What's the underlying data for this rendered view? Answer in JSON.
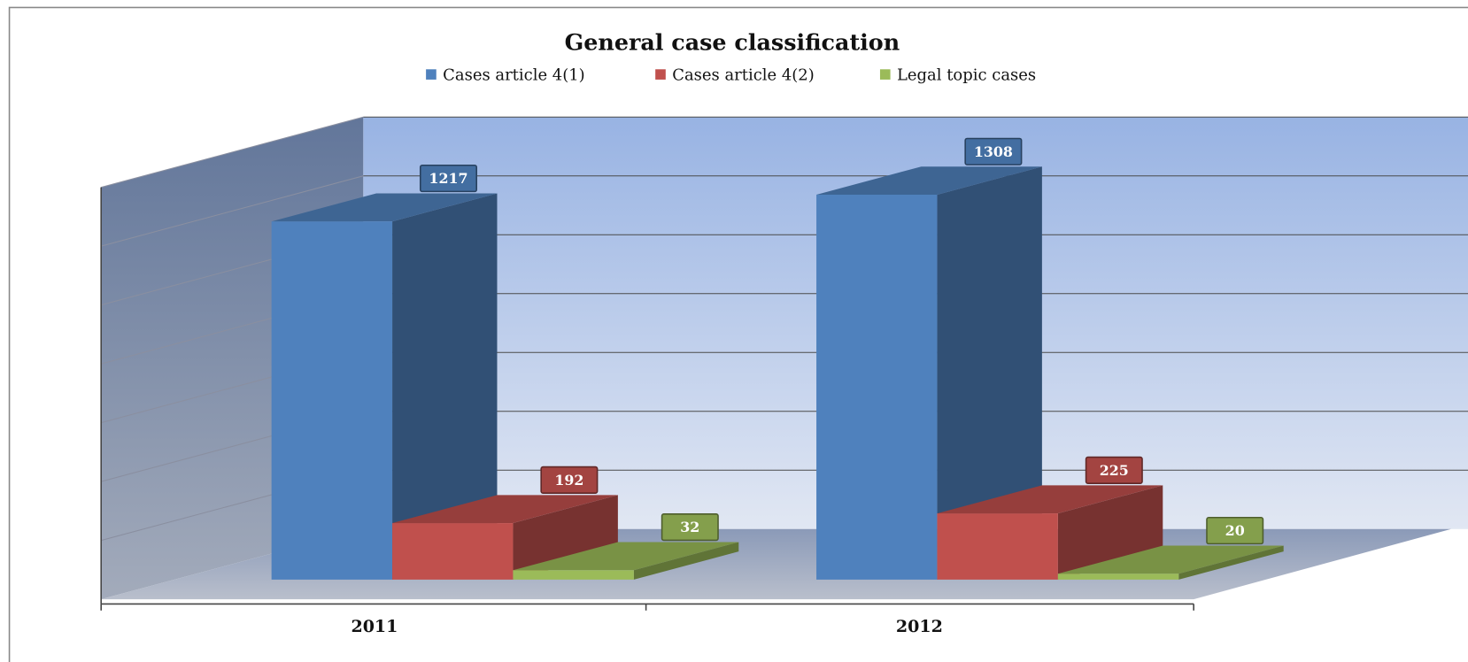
{
  "chart_data": {
    "type": "bar3d",
    "title": "General case classification",
    "categories": [
      "2011",
      "2012"
    ],
    "series": [
      {
        "name": "Cases article 4(1)",
        "color": "#4f81bd",
        "values": [
          1217,
          1308
        ]
      },
      {
        "name": "Cases article 4(2)",
        "color": "#c0504d",
        "values": [
          192,
          225
        ]
      },
      {
        "name": "Legal topic cases",
        "color": "#9bbb59",
        "values": [
          32,
          20
        ]
      }
    ],
    "ylim": [
      0,
      1400
    ],
    "yticks": [
      0,
      200,
      400,
      600,
      800,
      1000,
      1200,
      1400
    ],
    "grid": true,
    "legend": "top"
  }
}
